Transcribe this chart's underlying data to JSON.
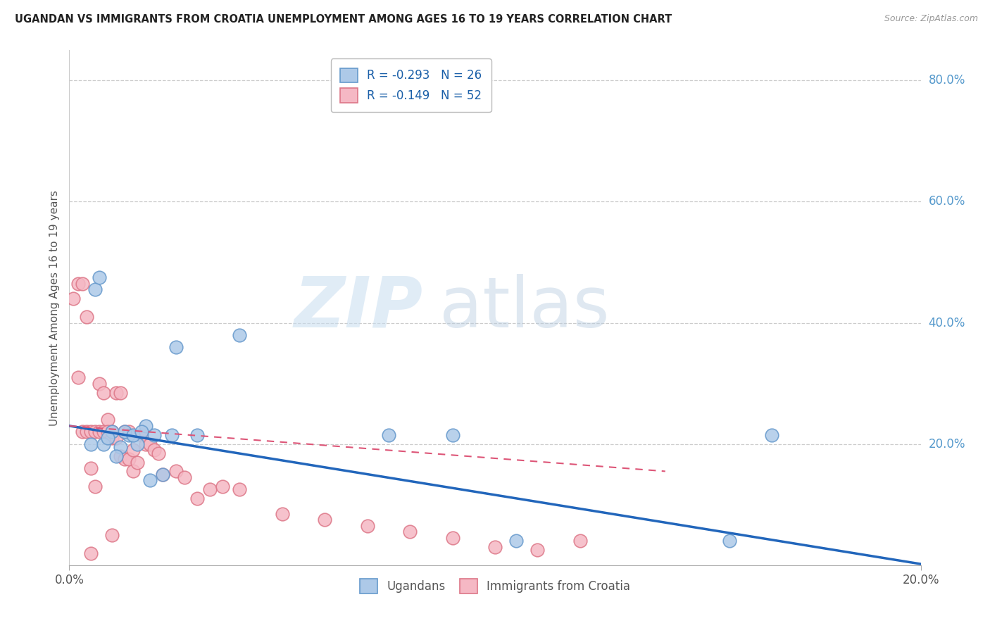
{
  "title": "UGANDAN VS IMMIGRANTS FROM CROATIA UNEMPLOYMENT AMONG AGES 16 TO 19 YEARS CORRELATION CHART",
  "source": "Source: ZipAtlas.com",
  "ylabel": "Unemployment Among Ages 16 to 19 years",
  "legend_blue_r": "-0.293",
  "legend_blue_n": "26",
  "legend_pink_r": "-0.149",
  "legend_pink_n": "52",
  "legend_label_blue": "Ugandans",
  "legend_label_pink": "Immigrants from Croatia",
  "ugandan_x": [
    0.01,
    0.012,
    0.014,
    0.016,
    0.018,
    0.02,
    0.022,
    0.024,
    0.005,
    0.006,
    0.007,
    0.008,
    0.009,
    0.011,
    0.013,
    0.015,
    0.017,
    0.019,
    0.025,
    0.03,
    0.04,
    0.075,
    0.09,
    0.105,
    0.155,
    0.165
  ],
  "ugandan_y": [
    0.22,
    0.195,
    0.215,
    0.2,
    0.23,
    0.215,
    0.15,
    0.215,
    0.2,
    0.455,
    0.475,
    0.2,
    0.21,
    0.18,
    0.22,
    0.215,
    0.22,
    0.14,
    0.36,
    0.215,
    0.38,
    0.215,
    0.215,
    0.04,
    0.04,
    0.215
  ],
  "croatia_x": [
    0.001,
    0.002,
    0.002,
    0.003,
    0.003,
    0.004,
    0.004,
    0.005,
    0.005,
    0.006,
    0.006,
    0.007,
    0.007,
    0.008,
    0.008,
    0.009,
    0.009,
    0.01,
    0.01,
    0.011,
    0.011,
    0.012,
    0.012,
    0.013,
    0.013,
    0.014,
    0.014,
    0.015,
    0.015,
    0.016,
    0.017,
    0.018,
    0.019,
    0.02,
    0.021,
    0.022,
    0.025,
    0.027,
    0.03,
    0.033,
    0.036,
    0.04,
    0.05,
    0.06,
    0.07,
    0.08,
    0.09,
    0.1,
    0.11,
    0.12,
    0.01,
    0.005
  ],
  "croatia_y": [
    0.44,
    0.465,
    0.31,
    0.465,
    0.22,
    0.41,
    0.22,
    0.22,
    0.16,
    0.22,
    0.13,
    0.3,
    0.22,
    0.285,
    0.22,
    0.24,
    0.22,
    0.21,
    0.22,
    0.21,
    0.285,
    0.285,
    0.18,
    0.22,
    0.175,
    0.22,
    0.175,
    0.19,
    0.155,
    0.17,
    0.215,
    0.2,
    0.2,
    0.19,
    0.185,
    0.15,
    0.155,
    0.145,
    0.11,
    0.125,
    0.13,
    0.125,
    0.085,
    0.075,
    0.065,
    0.055,
    0.045,
    0.03,
    0.025,
    0.04,
    0.05,
    0.02
  ],
  "xlim": [
    0.0,
    0.2
  ],
  "ylim": [
    0.0,
    0.85
  ],
  "blue_line_x": [
    0.0,
    0.2
  ],
  "blue_line_y": [
    0.23,
    0.002
  ],
  "pink_line_x": [
    0.0,
    0.14
  ],
  "pink_line_y": [
    0.23,
    0.155
  ],
  "bg_color": "#ffffff",
  "blue_fill": "#adc9e8",
  "pink_fill": "#f5b8c4",
  "blue_edge": "#6699cc",
  "pink_edge": "#dd7788",
  "trend_blue": "#2266bb",
  "trend_pink": "#dd5577",
  "grid_color": "#cccccc",
  "right_label_color": "#5599cc",
  "ytick_vals": [
    0.2,
    0.4,
    0.6,
    0.8
  ],
  "ytick_labels": [
    "20.0%",
    "40.0%",
    "60.0%",
    "80.0%"
  ]
}
